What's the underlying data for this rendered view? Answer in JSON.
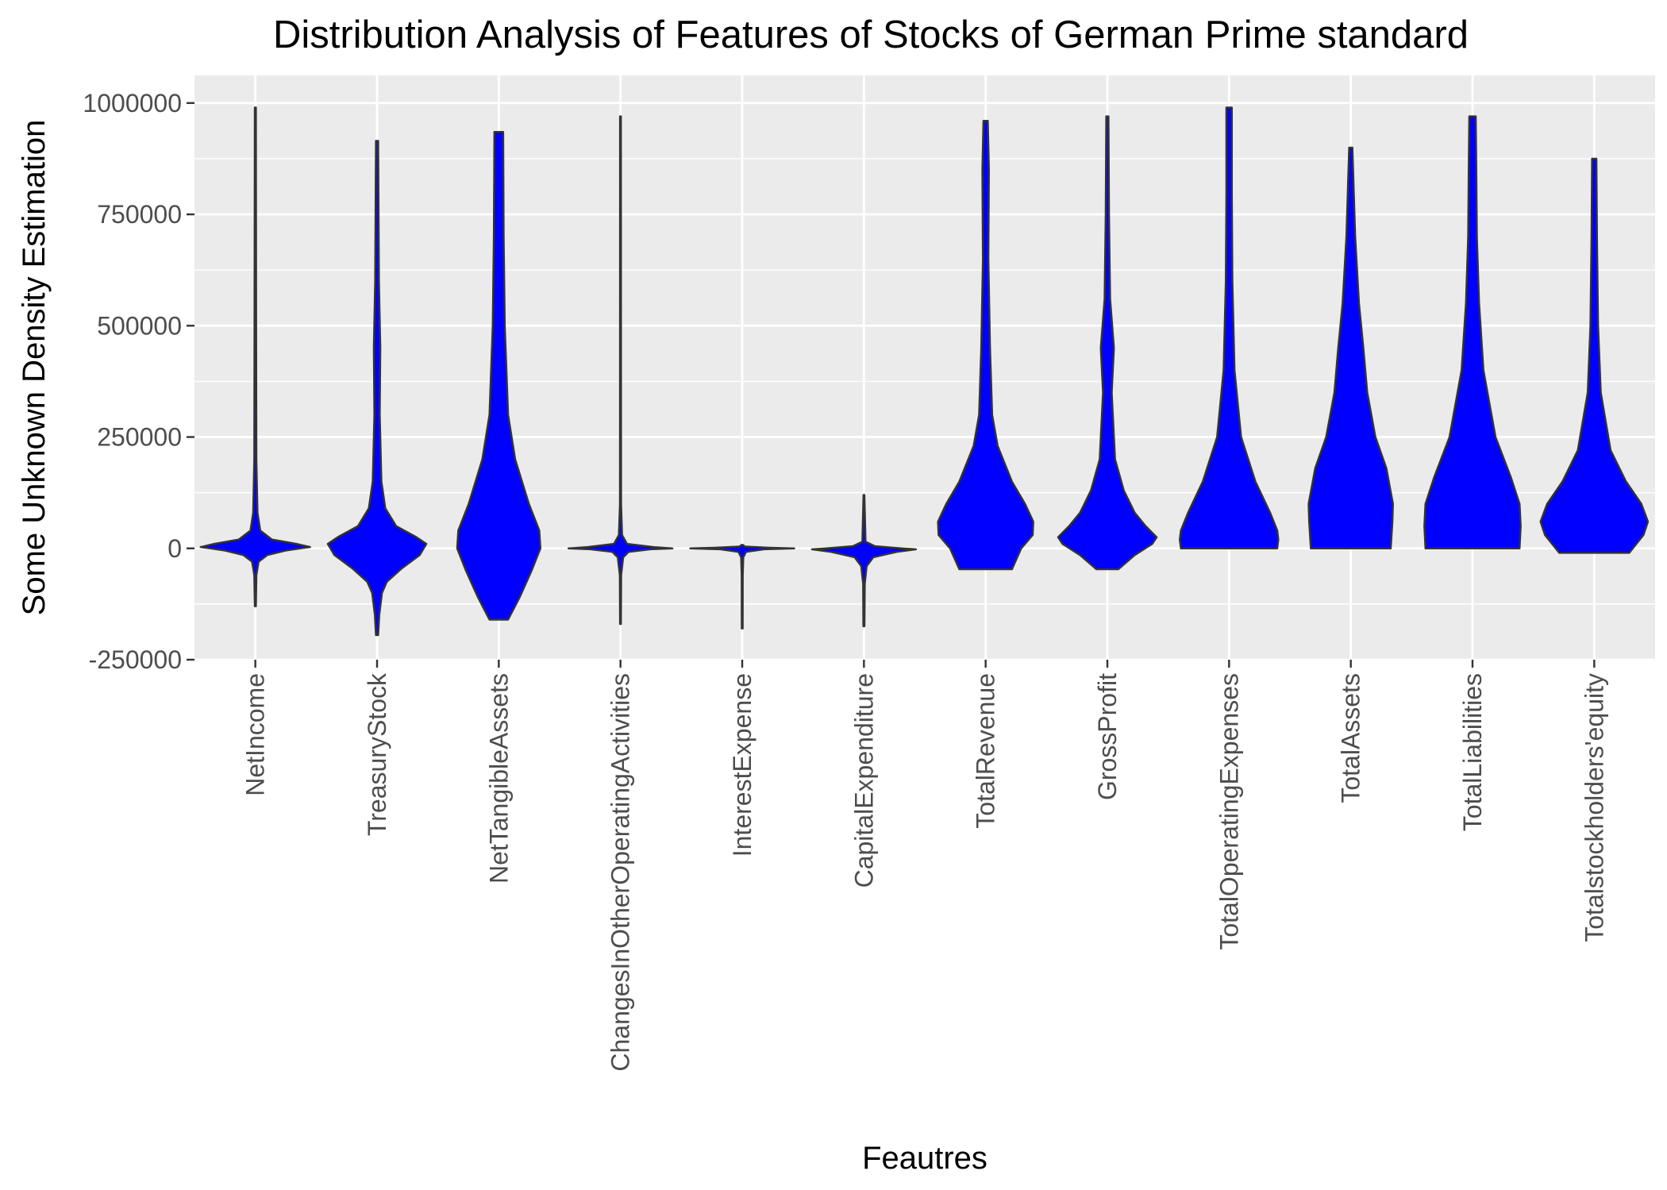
{
  "chart_data": {
    "type": "violin",
    "title": "Distribution Analysis of Features of Stocks of German Prime standard",
    "xlabel": "Feautres",
    "ylabel": "Some Unknown Density Estimation",
    "ylim": [
      -250000,
      1062000
    ],
    "yticks": [
      -250000,
      0,
      250000,
      500000,
      750000,
      1000000
    ],
    "ytick_labels": [
      "-250000",
      "0",
      "250000",
      "500000",
      "750000",
      "1000000"
    ],
    "grid": true,
    "legend": "none",
    "fill_color": "#0000ff",
    "outline_color": "#333333",
    "background_color": "#ebebeb",
    "categories": [
      "NetIncome",
      "TreasuryStock",
      "NetTangibleAssets",
      "ChangesInOtherOperatingActivities",
      "InterestExpense",
      "CapitalExpenditure",
      "TotalRevenue",
      "GrossProfit",
      "TotalOperatingExpenses",
      "TotalAssets",
      "TotalLiabilities",
      "Totalstockholders'equity"
    ],
    "violins": [
      {
        "category": "NetIncome",
        "shape": [
          [
            -130000,
            0.01
          ],
          [
            -60000,
            0.02
          ],
          [
            -30000,
            0.06
          ],
          [
            -15000,
            0.22
          ],
          [
            -5000,
            0.55
          ],
          [
            0,
            0.82
          ],
          [
            3000,
            1.0
          ],
          [
            10000,
            0.75
          ],
          [
            20000,
            0.3
          ],
          [
            40000,
            0.09
          ],
          [
            80000,
            0.04
          ],
          [
            200000,
            0.02
          ],
          [
            500000,
            0.015
          ],
          [
            990000,
            0.01
          ]
        ]
      },
      {
        "category": "TreasuryStock",
        "shape": [
          [
            -195000,
            0.02
          ],
          [
            -150000,
            0.04
          ],
          [
            -100000,
            0.09
          ],
          [
            -75000,
            0.18
          ],
          [
            -45000,
            0.45
          ],
          [
            -15000,
            0.78
          ],
          [
            10000,
            0.9
          ],
          [
            25000,
            0.72
          ],
          [
            50000,
            0.35
          ],
          [
            90000,
            0.15
          ],
          [
            150000,
            0.08
          ],
          [
            300000,
            0.05
          ],
          [
            450000,
            0.06
          ],
          [
            600000,
            0.035
          ],
          [
            915000,
            0.02
          ]
        ]
      },
      {
        "category": "NetTangibleAssets",
        "shape": [
          [
            -160000,
            0.17
          ],
          [
            -110000,
            0.38
          ],
          [
            -50000,
            0.6
          ],
          [
            0,
            0.76
          ],
          [
            40000,
            0.74
          ],
          [
            100000,
            0.55
          ],
          [
            200000,
            0.3
          ],
          [
            300000,
            0.17
          ],
          [
            500000,
            0.11
          ],
          [
            700000,
            0.09
          ],
          [
            935000,
            0.08
          ]
        ]
      },
      {
        "category": "ChangesInOtherOperatingActivities",
        "shape": [
          [
            -170000,
            0.008
          ],
          [
            -60000,
            0.012
          ],
          [
            -20000,
            0.05
          ],
          [
            -8000,
            0.15
          ],
          [
            -2000,
            0.55
          ],
          [
            0,
            0.95
          ],
          [
            3000,
            0.6
          ],
          [
            10000,
            0.12
          ],
          [
            30000,
            0.03
          ],
          [
            100000,
            0.01
          ],
          [
            970000,
            0.008
          ]
        ]
      },
      {
        "category": "InterestExpense",
        "shape": [
          [
            -180000,
            0.008
          ],
          [
            -60000,
            0.01
          ],
          [
            -20000,
            0.02
          ],
          [
            -8000,
            0.07
          ],
          [
            -2000,
            0.4
          ],
          [
            0,
            0.95
          ],
          [
            1500,
            0.5
          ],
          [
            4000,
            0.05
          ],
          [
            8000,
            0.01
          ]
        ]
      },
      {
        "category": "CapitalExpenditure",
        "shape": [
          [
            -175000,
            0.01
          ],
          [
            -80000,
            0.015
          ],
          [
            -40000,
            0.05
          ],
          [
            -20000,
            0.17
          ],
          [
            -8000,
            0.6
          ],
          [
            -2000,
            0.95
          ],
          [
            0,
            0.7
          ],
          [
            5000,
            0.2
          ],
          [
            15000,
            0.03
          ],
          [
            120000,
            0.008
          ]
        ]
      },
      {
        "category": "TotalRevenue",
        "shape": [
          [
            -47000,
            0.48
          ],
          [
            0,
            0.65
          ],
          [
            30000,
            0.86
          ],
          [
            60000,
            0.87
          ],
          [
            100000,
            0.72
          ],
          [
            150000,
            0.48
          ],
          [
            230000,
            0.22
          ],
          [
            300000,
            0.12
          ],
          [
            450000,
            0.08
          ],
          [
            650000,
            0.05
          ],
          [
            850000,
            0.06
          ],
          [
            960000,
            0.04
          ]
        ]
      },
      {
        "category": "GrossProfit",
        "shape": [
          [
            -47000,
            0.2
          ],
          [
            -15000,
            0.5
          ],
          [
            10000,
            0.82
          ],
          [
            25000,
            0.9
          ],
          [
            50000,
            0.7
          ],
          [
            80000,
            0.5
          ],
          [
            130000,
            0.3
          ],
          [
            200000,
            0.14
          ],
          [
            350000,
            0.08
          ],
          [
            450000,
            0.12
          ],
          [
            560000,
            0.05
          ],
          [
            750000,
            0.03
          ],
          [
            970000,
            0.02
          ]
        ]
      },
      {
        "category": "TotalOperatingExpenses",
        "shape": [
          [
            0,
            0.88
          ],
          [
            20000,
            0.9
          ],
          [
            40000,
            0.88
          ],
          [
            80000,
            0.75
          ],
          [
            150000,
            0.48
          ],
          [
            250000,
            0.22
          ],
          [
            400000,
            0.1
          ],
          [
            600000,
            0.06
          ],
          [
            800000,
            0.05
          ],
          [
            990000,
            0.05
          ]
        ]
      },
      {
        "category": "TotalAssets",
        "shape": [
          [
            0,
            0.73
          ],
          [
            60000,
            0.76
          ],
          [
            100000,
            0.77
          ],
          [
            180000,
            0.65
          ],
          [
            250000,
            0.45
          ],
          [
            350000,
            0.3
          ],
          [
            450000,
            0.23
          ],
          [
            550000,
            0.15
          ],
          [
            700000,
            0.08
          ],
          [
            900000,
            0.03
          ]
        ]
      },
      {
        "category": "TotalLiabilities",
        "shape": [
          [
            0,
            0.86
          ],
          [
            50000,
            0.88
          ],
          [
            100000,
            0.86
          ],
          [
            160000,
            0.7
          ],
          [
            250000,
            0.42
          ],
          [
            400000,
            0.2
          ],
          [
            550000,
            0.12
          ],
          [
            700000,
            0.08
          ],
          [
            850000,
            0.07
          ],
          [
            970000,
            0.06
          ]
        ]
      },
      {
        "category": "Totalstockholders'equity",
        "shape": [
          [
            -10000,
            0.64
          ],
          [
            30000,
            0.9
          ],
          [
            60000,
            0.98
          ],
          [
            100000,
            0.86
          ],
          [
            150000,
            0.58
          ],
          [
            220000,
            0.3
          ],
          [
            350000,
            0.12
          ],
          [
            500000,
            0.07
          ],
          [
            700000,
            0.05
          ],
          [
            875000,
            0.04
          ]
        ]
      }
    ]
  }
}
